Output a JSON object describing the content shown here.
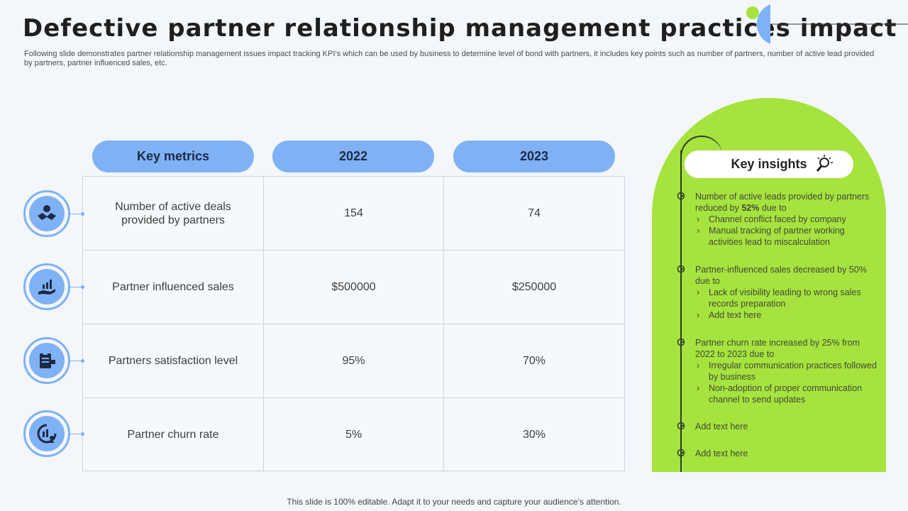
{
  "header": {
    "title": "Defective partner relationship management practices impact",
    "subtitle": "Following slide demonstrates partner relationship management issues impact tracking KPI’s which can be used by business to determine level of bond with partners, it includes key points such as number of partners, number of active lead provided by partners, partner influenced sales, etc."
  },
  "table": {
    "headers": [
      "Key metrics",
      "2022",
      "2023"
    ],
    "rows": [
      {
        "metric": "Number of active deals provided by partners",
        "y2022": "154",
        "y2023": "74",
        "icon": "handshake-icon"
      },
      {
        "metric": "Partner influenced sales",
        "y2022": "$500000",
        "y2023": "$250000",
        "icon": "sales-growth-icon"
      },
      {
        "metric": "Partners satisfaction level",
        "y2022": "95%",
        "y2023": "70%",
        "icon": "clipboard-satisfaction-icon"
      },
      {
        "metric": "Partner churn rate",
        "y2022": "5%",
        "y2023": "30%",
        "icon": "churn-chart-icon"
      }
    ]
  },
  "insights": {
    "title": "Key insights",
    "icon": "bulb-search-icon",
    "items": [
      {
        "pre": "Number of active leads provided  by partners reduced by ",
        "bold": "52%",
        "post": "  due to",
        "subs": [
          "Channel conflict faced by company",
          "Manual tracking of partner working activities lead to miscalculation"
        ]
      },
      {
        "pre": "Partner-influenced  sales decreased by 50% due to",
        "bold": "",
        "post": "",
        "subs": [
          "Lack of visibility leading to wrong sales records preparation",
          "Add text here"
        ]
      },
      {
        "pre": "Partner churn rate increased  by 25% from 2022 to 2023 due to",
        "bold": "",
        "post": "",
        "subs": [
          "Irregular  communication practices followed  by business",
          " Non-adoption  of proper communication channel to send updates"
        ]
      },
      {
        "pre": "Add text here",
        "bold": "",
        "post": "",
        "subs": []
      },
      {
        "pre": "Add text here",
        "bold": "",
        "post": "",
        "subs": []
      }
    ]
  },
  "footer": {
    "text": "This slide is 100% editable. Adapt it to your needs and capture your audience’s attention."
  },
  "colors": {
    "accent_blue": "#7fb1f5",
    "accent_green": "#a6e33e",
    "background": "#f3f7fb"
  }
}
